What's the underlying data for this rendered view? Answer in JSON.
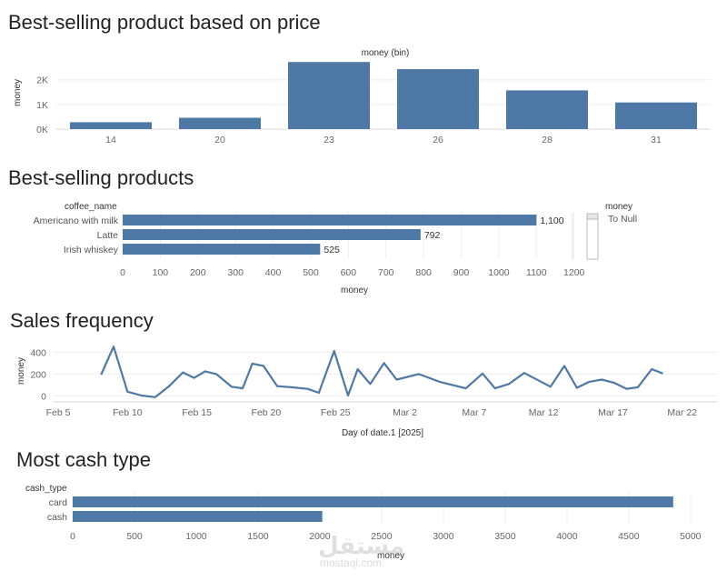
{
  "colors": {
    "bar": "#4e79a7",
    "line": "#4e79a7"
  },
  "charts": {
    "price": {
      "title": "Best-selling product based on price",
      "chart_data": {
        "type": "bar",
        "header": "money (bin)",
        "ylabel": "money",
        "categories": [
          "14",
          "20",
          "23",
          "26",
          "28",
          "31"
        ],
        "values": [
          280,
          460,
          2720,
          2430,
          1570,
          1080
        ],
        "yticks": [
          {
            "v": 0,
            "t": "0K"
          },
          {
            "v": 1000,
            "t": "1K"
          },
          {
            "v": 2000,
            "t": "2K"
          }
        ],
        "ylim": [
          0,
          2800
        ]
      }
    },
    "products": {
      "title": "Best-selling products",
      "chart_data": {
        "type": "bar",
        "orientation": "horizontal",
        "row_header": "coffee_name",
        "categories": [
          "Americano with milk",
          "Latte",
          "Irish whiskey"
        ],
        "values": [
          1100,
          792,
          525
        ],
        "value_labels": [
          "1,100",
          "792",
          "525"
        ],
        "xticks": [
          0,
          100,
          200,
          300,
          400,
          500,
          600,
          700,
          800,
          900,
          1000,
          1100,
          1200
        ],
        "xlabel": "money",
        "xlim": [
          0,
          1220
        ]
      },
      "legend": {
        "title": "money",
        "item": "To Null"
      }
    },
    "frequency": {
      "title": "Sales frequency",
      "chart_data": {
        "type": "line",
        "ylabel": "money",
        "xlabel": "Day of date.1 [2025]",
        "x_start_day": 0,
        "x_end_day": 46,
        "yticks": [
          0,
          200,
          400
        ],
        "ylim": [
          -20,
          460
        ],
        "xticks": [
          {
            "day": 0,
            "t": "Feb 5"
          },
          {
            "day": 5,
            "t": "Feb 10"
          },
          {
            "day": 10,
            "t": "Feb 15"
          },
          {
            "day": 15,
            "t": "Feb 20"
          },
          {
            "day": 20,
            "t": "Feb 25"
          },
          {
            "day": 25,
            "t": "Mar 2"
          },
          {
            "day": 30,
            "t": "Mar 7"
          },
          {
            "day": 35,
            "t": "Mar 12"
          },
          {
            "day": 40,
            "t": "Mar 17"
          },
          {
            "day": 45,
            "t": "Mar 22"
          }
        ],
        "points": [
          {
            "day": 3.1,
            "y": 195
          },
          {
            "day": 4.0,
            "y": 450
          },
          {
            "day": 5.0,
            "y": 40
          },
          {
            "day": 6.0,
            "y": 5
          },
          {
            "day": 7.0,
            "y": -10
          },
          {
            "day": 8.0,
            "y": 90
          },
          {
            "day": 9.0,
            "y": 215
          },
          {
            "day": 9.8,
            "y": 165
          },
          {
            "day": 10.6,
            "y": 225
          },
          {
            "day": 11.4,
            "y": 200
          },
          {
            "day": 12.5,
            "y": 85
          },
          {
            "day": 13.3,
            "y": 70
          },
          {
            "day": 14.0,
            "y": 295
          },
          {
            "day": 14.8,
            "y": 275
          },
          {
            "day": 15.8,
            "y": 90
          },
          {
            "day": 16.8,
            "y": 80
          },
          {
            "day": 18.0,
            "y": 65
          },
          {
            "day": 18.8,
            "y": 30
          },
          {
            "day": 19.9,
            "y": 410
          },
          {
            "day": 20.9,
            "y": 5
          },
          {
            "day": 21.6,
            "y": 245
          },
          {
            "day": 22.5,
            "y": 110
          },
          {
            "day": 23.5,
            "y": 300
          },
          {
            "day": 24.4,
            "y": 150
          },
          {
            "day": 26.0,
            "y": 200
          },
          {
            "day": 27.5,
            "y": 130
          },
          {
            "day": 29.4,
            "y": 70
          },
          {
            "day": 30.6,
            "y": 205
          },
          {
            "day": 31.5,
            "y": 70
          },
          {
            "day": 32.5,
            "y": 110
          },
          {
            "day": 33.6,
            "y": 210
          },
          {
            "day": 35.5,
            "y": 85
          },
          {
            "day": 36.5,
            "y": 275
          },
          {
            "day": 37.4,
            "y": 75
          },
          {
            "day": 38.3,
            "y": 130
          },
          {
            "day": 39.2,
            "y": 150
          },
          {
            "day": 40.1,
            "y": 120
          },
          {
            "day": 41.0,
            "y": 65
          },
          {
            "day": 41.8,
            "y": 80
          },
          {
            "day": 42.8,
            "y": 245
          },
          {
            "day": 43.6,
            "y": 205
          }
        ]
      }
    },
    "cash": {
      "title": "Most cash type",
      "chart_data": {
        "type": "bar",
        "orientation": "horizontal",
        "row_header": "cash_type",
        "categories": [
          "card",
          "cash"
        ],
        "values": [
          4860,
          2020
        ],
        "xticks": [
          0,
          500,
          1000,
          1500,
          2000,
          2500,
          3000,
          3500,
          4000,
          4500,
          5000
        ],
        "xlabel": "money",
        "xlim": [
          0,
          5060
        ]
      }
    }
  },
  "watermark": {
    "arabic": "مستقل",
    "latin": "mostaql.com"
  }
}
